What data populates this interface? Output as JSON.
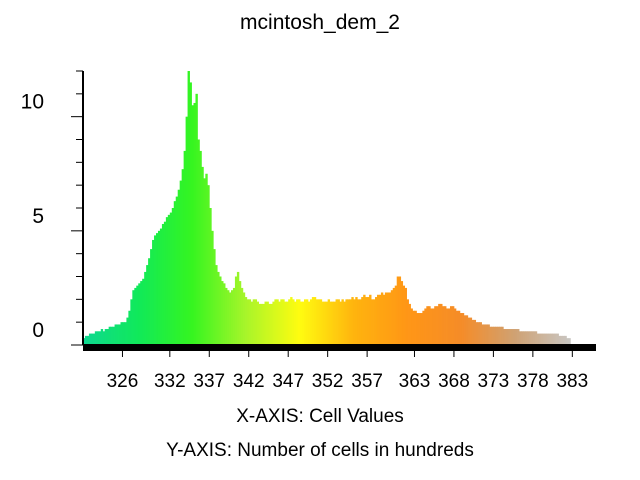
{
  "chart_data": {
    "type": "bar",
    "title": "mcintosh_dem_2",
    "xlabel": "X-AXIS: Cell Values",
    "ylabel": "Y-AXIS: Number of cells in hundreds",
    "x_ticks": [
      "326",
      "332",
      "337",
      "342",
      "347",
      "352",
      "357",
      "363",
      "368",
      "373",
      "378",
      "383"
    ],
    "y_ticks": [
      "0",
      "5",
      "10"
    ],
    "x_range": [
      321,
      386
    ],
    "ylim": [
      0,
      12
    ],
    "gradient_colors": [
      "#0fd890",
      "#10e95a",
      "#35f520",
      "#a8f52a",
      "#fffc10",
      "#ffb40e",
      "#ff9616",
      "#f58c28",
      "#cfa274",
      "#c9c6c2"
    ],
    "series": [
      {
        "bins_start": 321.0,
        "bin_width": 0.25,
        "values": [
          0.3,
          0.4,
          0.4,
          0.5,
          0.5,
          0.5,
          0.6,
          0.6,
          0.6,
          0.7,
          0.6,
          0.7,
          0.7,
          0.8,
          0.8,
          0.8,
          0.9,
          0.9,
          0.9,
          1.0,
          1.0,
          1.0,
          1.2,
          1.5,
          2.0,
          2.4,
          2.5,
          2.6,
          2.7,
          2.8,
          2.9,
          3.2,
          3.5,
          3.8,
          4.2,
          4.6,
          4.8,
          4.9,
          5.0,
          5.1,
          5.3,
          5.4,
          5.6,
          5.7,
          5.8,
          6.0,
          6.3,
          6.5,
          6.8,
          7.2,
          7.7,
          8.5,
          10.0,
          12.0,
          11.5,
          10.5,
          10.6,
          11.0,
          9.0,
          8.5,
          7.8,
          7.3,
          7.5,
          7.0,
          6.0,
          5.0,
          4.2,
          3.5,
          3.2,
          3.0,
          2.8,
          2.7,
          2.5,
          2.4,
          2.3,
          2.4,
          2.5,
          3.0,
          3.2,
          2.8,
          2.5,
          2.3,
          2.1,
          2.0,
          2.0,
          1.9,
          2.0,
          2.0,
          1.9,
          1.8,
          1.8,
          1.8,
          1.9,
          1.9,
          1.8,
          1.8,
          1.9,
          2.0,
          2.0,
          1.9,
          2.0,
          2.0,
          1.9,
          1.9,
          2.0,
          2.1,
          2.0,
          1.9,
          2.0,
          2.0,
          1.9,
          1.9,
          2.0,
          2.0,
          1.9,
          2.0,
          2.1,
          2.1,
          2.0,
          2.0,
          2.0,
          1.9,
          1.9,
          1.9,
          2.0,
          1.9,
          1.9,
          1.9,
          2.0,
          2.0,
          1.9,
          2.0,
          1.9,
          2.0,
          2.0,
          2.0,
          2.1,
          2.0,
          2.1,
          2.0,
          2.0,
          2.1,
          2.2,
          2.1,
          2.1,
          2.2,
          2.0,
          2.0,
          2.1,
          2.2,
          2.2,
          2.3,
          2.2,
          2.3,
          2.3,
          2.3,
          2.4,
          2.5,
          2.6,
          3.0,
          3.0,
          2.8,
          2.6,
          2.5,
          2.0,
          1.8,
          1.6,
          1.5,
          1.5,
          1.4,
          1.4,
          1.4,
          1.5,
          1.6,
          1.7,
          1.7,
          1.6,
          1.6,
          1.7,
          1.7,
          1.8,
          1.8,
          1.7,
          1.7,
          1.6,
          1.6,
          1.7,
          1.7,
          1.6,
          1.5,
          1.5,
          1.4,
          1.4,
          1.3,
          1.3,
          1.2,
          1.2,
          1.1,
          1.1,
          1.0,
          1.0,
          1.0,
          0.9,
          0.9,
          0.9,
          0.9,
          0.8,
          0.8,
          0.8,
          0.8,
          0.8,
          0.8,
          0.8,
          0.7,
          0.7,
          0.7,
          0.7,
          0.7,
          0.7,
          0.7,
          0.7,
          0.6,
          0.6,
          0.6,
          0.6,
          0.6,
          0.6,
          0.6,
          0.6,
          0.6,
          0.5,
          0.5,
          0.5,
          0.5,
          0.5,
          0.5,
          0.5,
          0.5,
          0.5,
          0.5,
          0.5,
          0.4,
          0.4,
          0.4,
          0.4,
          0.3,
          0.3
        ]
      }
    ],
    "grid": false,
    "legend": "none"
  }
}
